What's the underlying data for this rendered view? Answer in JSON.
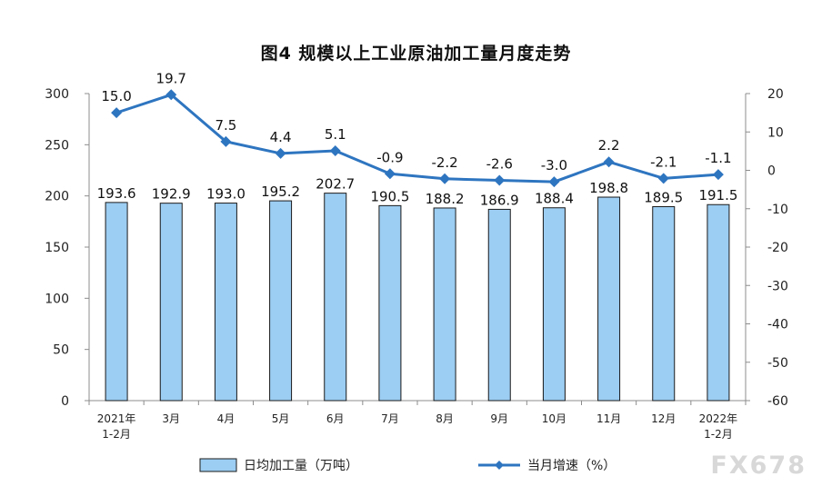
{
  "chart_data": {
    "type": "bar+line",
    "title": "图4  规模以上工业原油加工量月度走势",
    "categories": [
      [
        "2021年",
        "1-2月"
      ],
      [
        "3月"
      ],
      [
        "4月"
      ],
      [
        "5月"
      ],
      [
        "6月"
      ],
      [
        "7月"
      ],
      [
        "8月"
      ],
      [
        "9月"
      ],
      [
        "10月"
      ],
      [
        "11月"
      ],
      [
        "12月"
      ],
      [
        "2022年",
        "1-2月"
      ]
    ],
    "series": [
      {
        "name": "日均加工量（万吨）",
        "type": "bar",
        "axis": "left",
        "color": "#9ccdf2",
        "values": [
          193.6,
          192.9,
          193.0,
          195.2,
          202.7,
          190.5,
          188.2,
          186.9,
          188.4,
          198.8,
          189.5,
          191.5
        ],
        "labels": [
          "193.6",
          "192.9",
          "193.0",
          "195.2",
          "202.7",
          "190.5",
          "188.2",
          "186.9",
          "188.4",
          "198.8",
          "189.5",
          "191.5"
        ]
      },
      {
        "name": "当月增速（%）",
        "type": "line",
        "axis": "right",
        "color": "#2e75c0",
        "values": [
          15.0,
          19.7,
          7.5,
          4.4,
          5.1,
          -0.9,
          -2.2,
          -2.6,
          -3.0,
          2.2,
          -2.1,
          -1.1
        ],
        "labels": [
          "15.0",
          "19.7",
          "7.5",
          "4.4",
          "5.1",
          "-0.9",
          "-2.2",
          "-2.6",
          "-3.0",
          "2.2",
          "-2.1",
          "-1.1"
        ]
      }
    ],
    "y_left": {
      "min": 0,
      "max": 300,
      "ticks": [
        "0",
        "50",
        "100",
        "150",
        "200",
        "250",
        "300"
      ]
    },
    "y_right": {
      "min": -60,
      "max": 20,
      "ticks": [
        "-60",
        "-50",
        "-40",
        "-30",
        "-20",
        "-10",
        "0",
        "10",
        "20"
      ]
    },
    "legend_position": "bottom",
    "grid": false
  },
  "watermark": "FX678"
}
